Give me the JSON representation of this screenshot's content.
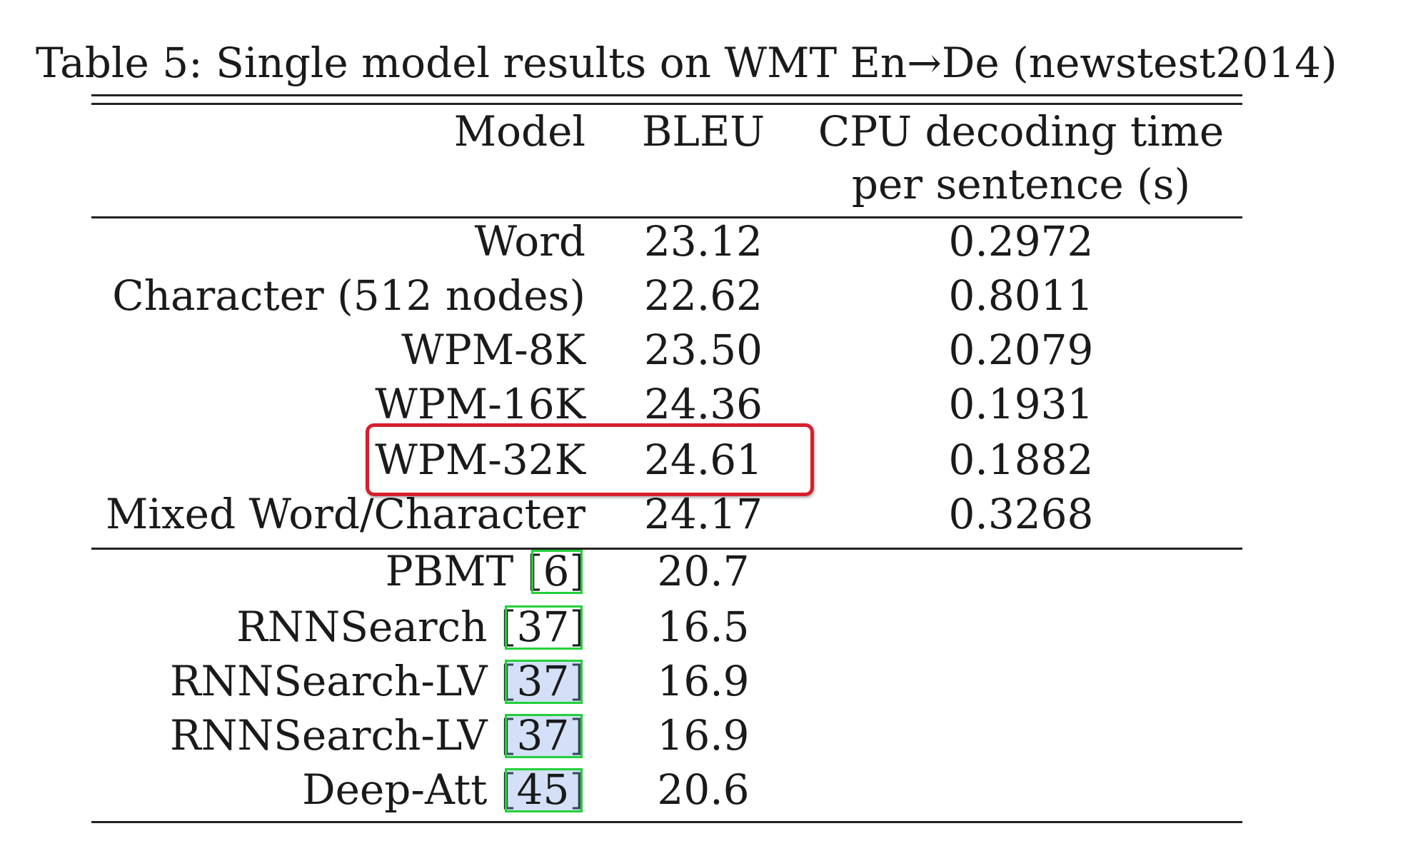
{
  "caption": "Table 5: Single model results on WMT En→De (newstest2014)",
  "header": {
    "model": "Model",
    "bleu": "BLEU",
    "cpu_line1": "CPU decoding time",
    "cpu_line2": "per sentence (s)"
  },
  "group1": [
    {
      "model": "Word",
      "bleu": "23.12",
      "cpu": "0.2972"
    },
    {
      "model": "Character (512 nodes)",
      "bleu": "22.62",
      "cpu": "0.8011"
    },
    {
      "model": "WPM-8K",
      "bleu": "23.50",
      "cpu": "0.2079"
    },
    {
      "model": "WPM-16K",
      "bleu": "24.36",
      "cpu": "0.1931"
    },
    {
      "model": "WPM-32K",
      "bleu": "24.61",
      "cpu": "0.1882"
    },
    {
      "model": "Mixed Word/Character",
      "bleu": "24.17",
      "cpu": "0.3268"
    }
  ],
  "group2": [
    {
      "model": "PBMT",
      "cite": "6",
      "bleu": "20.7"
    },
    {
      "model": "RNNSearch",
      "cite": "37",
      "bleu": "16.5"
    },
    {
      "model": "RNNSearch-LV",
      "cite": "37",
      "bleu": "16.9"
    },
    {
      "model": "RNNSearch-LV",
      "cite": "37",
      "bleu": "16.9"
    },
    {
      "model": "Deep-Att",
      "cite": "45",
      "bleu": "20.6"
    }
  ]
}
